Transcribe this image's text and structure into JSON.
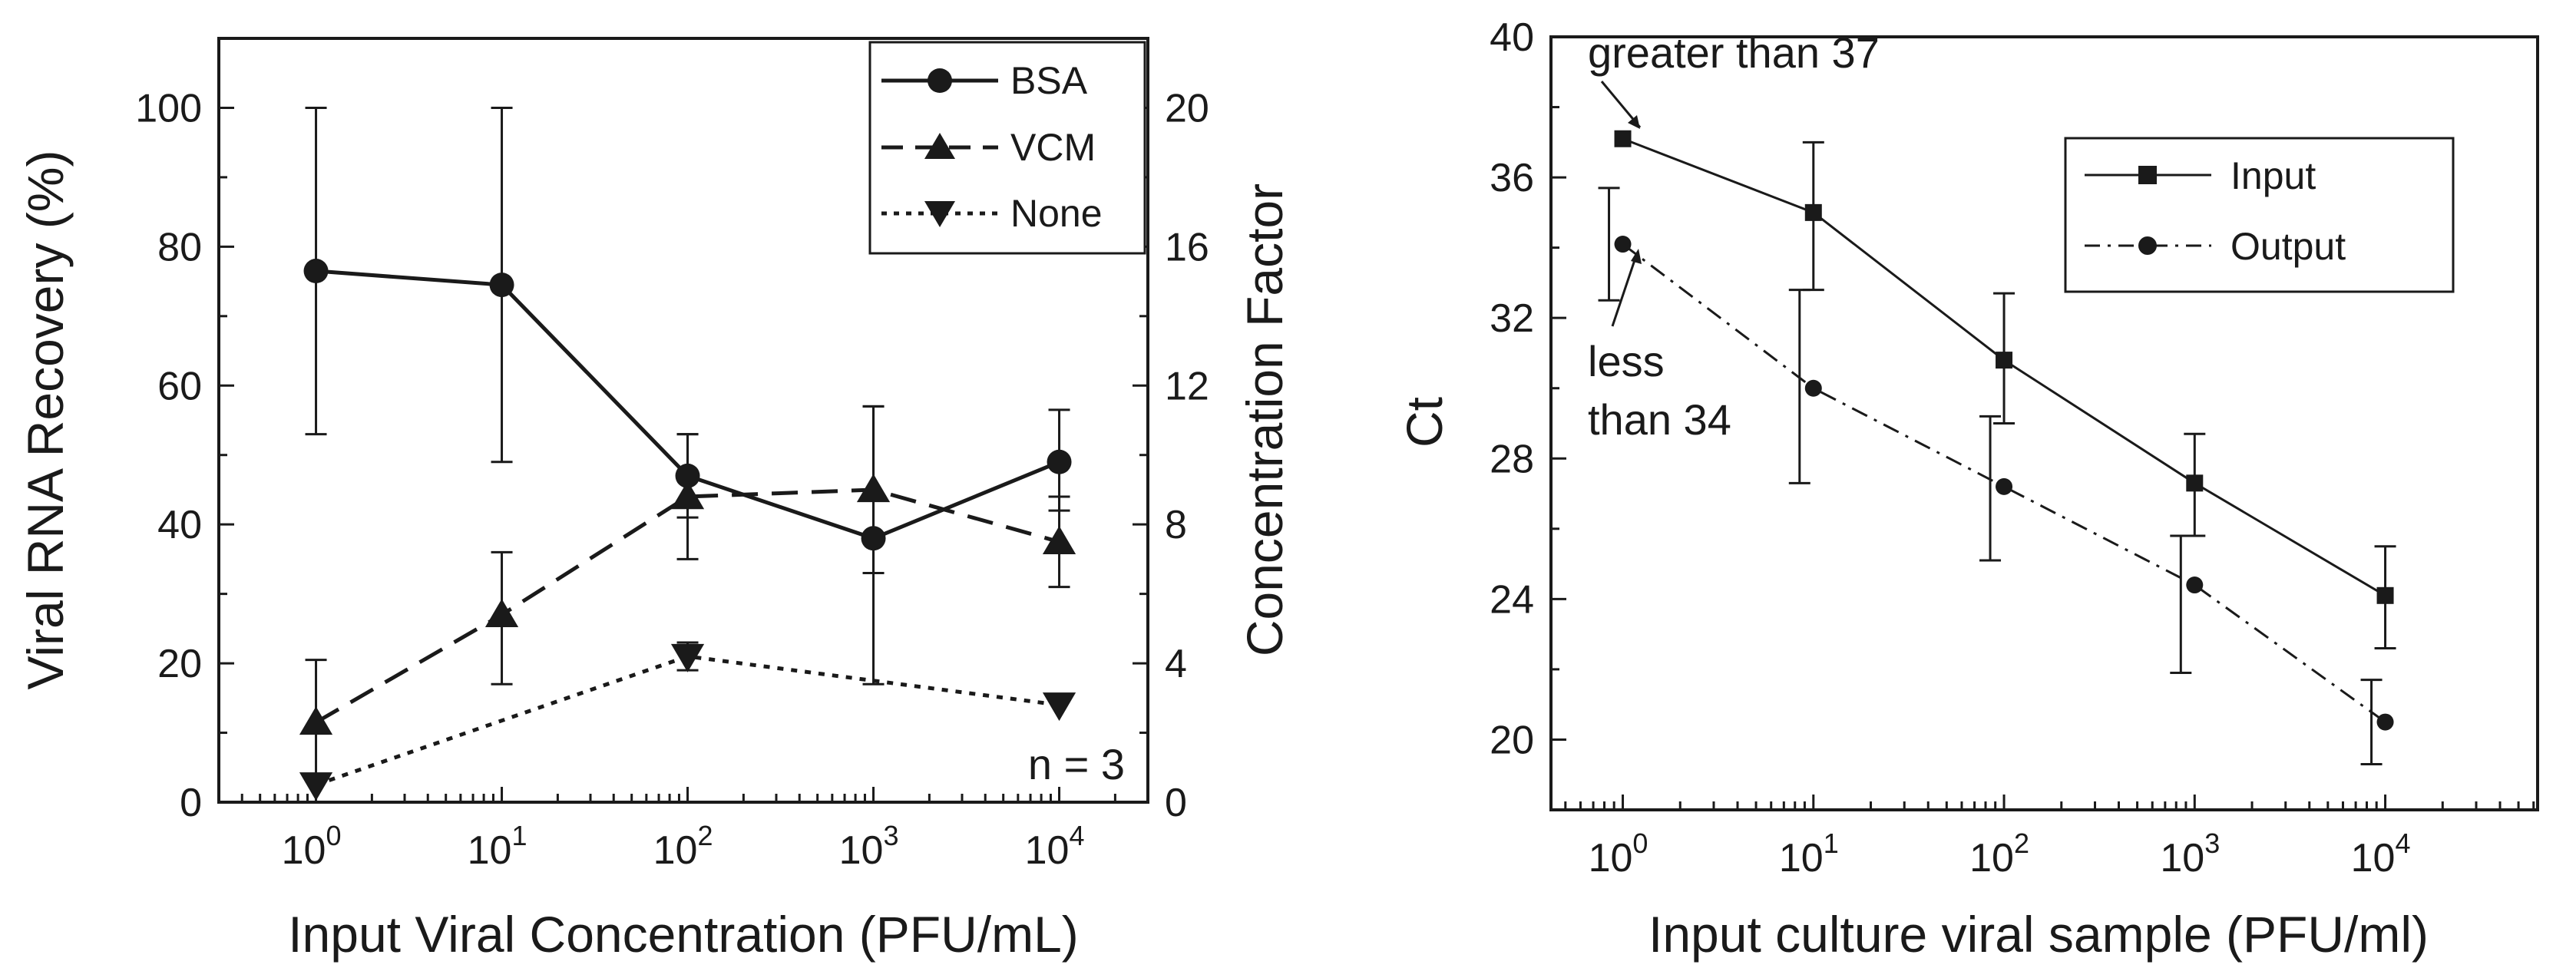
{
  "chart_data": [
    {
      "type": "line",
      "xscale": "log",
      "x": [
        1,
        10,
        100,
        1000,
        10000
      ],
      "xticks": [
        {
          "base": "10",
          "exp": "0"
        },
        {
          "base": "10",
          "exp": "1"
        },
        {
          "base": "10",
          "exp": "2"
        },
        {
          "base": "10",
          "exp": "3"
        },
        {
          "base": "10",
          "exp": "4"
        }
      ],
      "xlabel": "Input Viral Concentration (PFU/mL)",
      "ylabel": "Viral RNA Recovery (%)",
      "y2label": "Concentration Factor",
      "ylim": [
        0,
        110
      ],
      "yticks": [
        "0",
        "20",
        "40",
        "60",
        "80",
        "100"
      ],
      "y2lim": [
        0,
        22
      ],
      "y2ticks": [
        "0",
        "4",
        "8",
        "12",
        "16",
        "20"
      ],
      "annotation": "n = 3",
      "series": [
        {
          "name": "BSA",
          "line": "solid",
          "marker": "circle",
          "values": [
            76.5,
            74.5,
            47,
            38,
            49
          ],
          "err_low": [
            53,
            49,
            41,
            17,
            42
          ],
          "err_high": [
            100,
            100,
            53,
            57,
            56.5
          ]
        },
        {
          "name": "VCM",
          "line": "dashed",
          "marker": "triangle-up",
          "values": [
            11.5,
            27,
            44,
            45,
            37.5
          ],
          "err_low": [
            3,
            17,
            35,
            33,
            31
          ],
          "err_high": [
            20.5,
            36,
            53,
            57,
            44
          ]
        },
        {
          "name": "None",
          "line": "dotted",
          "marker": "triangle-down",
          "values": [
            2.5,
            null,
            21,
            null,
            14
          ],
          "err_low": [
            null,
            null,
            19,
            null,
            null
          ],
          "err_high": [
            null,
            null,
            23,
            null,
            null
          ]
        }
      ]
    },
    {
      "type": "line",
      "xscale": "log",
      "x": [
        1,
        10,
        100,
        1000,
        10000
      ],
      "xticks": [
        {
          "base": "10",
          "exp": "0"
        },
        {
          "base": "10",
          "exp": "1"
        },
        {
          "base": "10",
          "exp": "2"
        },
        {
          "base": "10",
          "exp": "3"
        },
        {
          "base": "10",
          "exp": "4"
        }
      ],
      "xlabel": "Input culture viral sample (PFU/ml)",
      "ylabel": "Ct",
      "ylim": [
        18,
        40
      ],
      "yticks": [
        "20",
        "24",
        "28",
        "32",
        "36",
        "40"
      ],
      "annotations": [
        "greater than 37",
        "less",
        "than 34"
      ],
      "series": [
        {
          "name": "Input",
          "line": "solid",
          "marker": "square",
          "values": [
            37.1,
            35,
            30.8,
            27.3,
            24.1
          ],
          "err_low": [
            null,
            32.8,
            29,
            25.8,
            22.6
          ],
          "err_high": [
            null,
            37,
            32.7,
            28.7,
            25.5
          ]
        },
        {
          "name": "Output",
          "line": "dashdot",
          "marker": "circle",
          "values": [
            34.1,
            30,
            27.2,
            24.4,
            20.5
          ],
          "err_low": [
            32.5,
            27.3,
            25.1,
            21.9,
            19.3
          ],
          "err_high": [
            35.7,
            32.8,
            29.2,
            25.8,
            21.7
          ]
        }
      ]
    }
  ]
}
